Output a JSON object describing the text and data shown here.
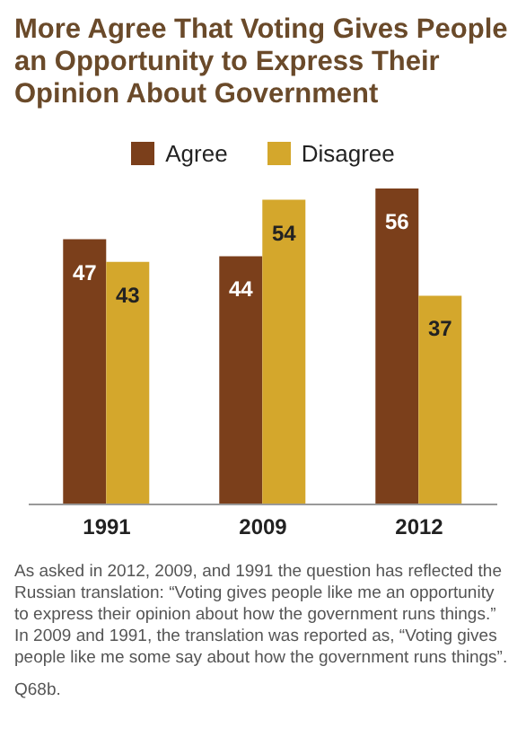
{
  "chart_data": {
    "type": "bar",
    "title": "More Agree That Voting Gives People an Opportunity to Express Their Opinion About Government",
    "categories": [
      "1991",
      "2009",
      "2012"
    ],
    "series": [
      {
        "name": "Agree",
        "color": "#7b3f1b",
        "values": [
          47,
          44,
          56
        ]
      },
      {
        "name": "Disagree",
        "color": "#d4a72c",
        "values": [
          43,
          54,
          37
        ]
      }
    ],
    "data_labels": true,
    "legend": "top",
    "grid": false,
    "annotations": [
      "As asked in 2012, 2009, and 1991 the question has reflected the Russian translation: “Voting gives people like me an opportunity to express their opinion about how the government runs things.” In 2009 and 1991, the translation was reported as, “Voting gives people like me some say about how the government runs things”.",
      "Q68b."
    ]
  }
}
